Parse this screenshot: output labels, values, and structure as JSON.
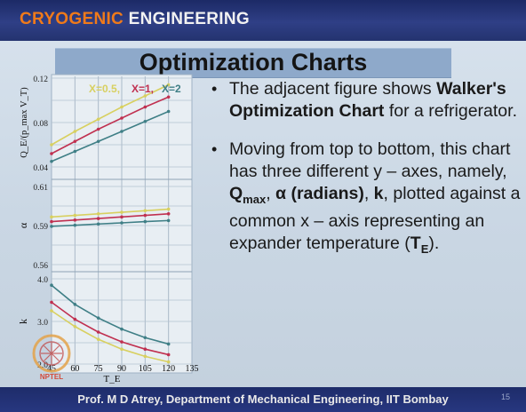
{
  "header": {
    "brand_part1": "CRYOGENIC",
    "brand_part2": "ENGINEERING"
  },
  "slide": {
    "title": "Optimization Charts",
    "bullet1": {
      "text1": "The adjacent figure shows",
      "bold1": "Walker's Optimization Chart",
      "text2": " for a refrigerator."
    },
    "bullet2": {
      "t1": "Moving from top to bottom, this chart has three different y – axes, namely, ",
      "q": "Q",
      "qsub": "max",
      "sep1": ", ",
      "alpha": "α",
      "radians": "(radians)",
      "sep2": ", ",
      "k": "k",
      "t2": ", plotted against a common x – axis representing an expander temperature (",
      "te": "T",
      "tesub": "E",
      "t3": ")."
    }
  },
  "footer": {
    "text": "Prof. M D Atrey, Department of Mechanical Engineering, IIT Bombay",
    "page": "15"
  },
  "colors": {
    "accent": "#f07a1a",
    "x05": "#d8d060",
    "x1": "#c03050",
    "x2": "#3f7f86"
  },
  "chart_data": {
    "type": "line",
    "x": [
      45,
      60,
      75,
      90,
      105,
      120
    ],
    "xlabel": "T_E",
    "x_ticks": [
      "45",
      "60",
      "75",
      "90",
      "105",
      "120",
      "135"
    ],
    "legend": [
      "X=0.5,",
      "X=1,",
      "X=2"
    ],
    "panels": [
      {
        "ylabel": "Q_E/(p_max V_T)",
        "ylim": [
          0.04,
          0.12
        ],
        "y_ticks": [
          "0.12",
          "0.08",
          "0.04"
        ],
        "series": [
          {
            "name": "X=0.5",
            "values": [
              0.06,
              0.072,
              0.083,
              0.094,
              0.104,
              0.114
            ]
          },
          {
            "name": "X=1",
            "values": [
              0.052,
              0.063,
              0.074,
              0.084,
              0.094,
              0.103
            ]
          },
          {
            "name": "X=2",
            "values": [
              0.045,
              0.054,
              0.063,
              0.072,
              0.081,
              0.09
            ]
          }
        ]
      },
      {
        "ylabel": "α",
        "ylim": [
          0.56,
          0.61
        ],
        "y_ticks": [
          "0.61",
          "0.59",
          "0.56"
        ],
        "series": [
          {
            "name": "X=0.5",
            "values": [
              0.5905,
              0.5915,
              0.5925,
              0.5935,
              0.5945,
              0.5955
            ]
          },
          {
            "name": "X=1",
            "values": [
              0.5875,
              0.5885,
              0.5895,
              0.5905,
              0.5915,
              0.5925
            ]
          },
          {
            "name": "X=2",
            "values": [
              0.5845,
              0.5852,
              0.586,
              0.5867,
              0.5875,
              0.5882
            ]
          }
        ]
      },
      {
        "ylabel": "k",
        "ylim": [
          2.0,
          4.0
        ],
        "y_ticks": [
          "4.0",
          "3.0",
          "2.0"
        ],
        "series": [
          {
            "name": "X=0.5",
            "values": [
              3.25,
              2.88,
              2.58,
              2.35,
              2.18,
              2.05
            ]
          },
          {
            "name": "X=1",
            "values": [
              3.45,
              3.05,
              2.75,
              2.52,
              2.35,
              2.22
            ]
          },
          {
            "name": "X=2",
            "values": [
              3.85,
              3.4,
              3.08,
              2.82,
              2.62,
              2.47
            ]
          }
        ]
      }
    ]
  }
}
